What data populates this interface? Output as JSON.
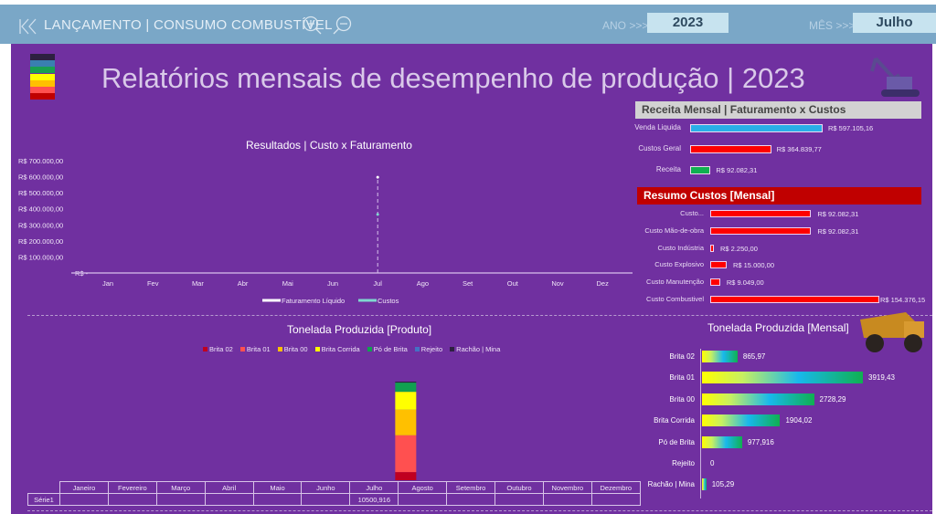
{
  "topbar": {
    "nav_label": "LANÇAMENTO | CONSUMO COMBUSTÍVEL",
    "year_label": "ANO >>>",
    "year_value": "2023",
    "month_label": "MÊS >>>",
    "month_value": "Julho"
  },
  "header": {
    "title": "Relatórios mensais de desempenho de produção | 2023",
    "swatches": [
      "#2d2040",
      "#3a7fb0",
      "#1aa050",
      "#ffff00",
      "#ffc000",
      "#ff5050",
      "#c00000"
    ]
  },
  "receita": {
    "title": "Receita Mensal | Faturamento x Custos",
    "rows": [
      {
        "label": "Venda Liquida",
        "value": 597105.16,
        "text": "R$ 597.105,16",
        "color": "#29aee8"
      },
      {
        "label": "Custos Geral",
        "value": 364839.77,
        "text": "R$ 364.839,77",
        "color": "#ff0000"
      },
      {
        "label": "Receita",
        "value": 92082.31,
        "text": "R$ 92.082,31",
        "color": "#10b050"
      }
    ]
  },
  "resumo": {
    "title": "Resumo Custos [Mensal]",
    "rows": [
      {
        "label": "Custo...",
        "value": 92082.31,
        "text": "R$ 92.082,31"
      },
      {
        "label": "Custo Mão-de-obra",
        "value": 92082.31,
        "text": "R$ 92.082,31"
      },
      {
        "label": "Custo Indústria",
        "value": 2250,
        "text": "R$ 2.250,00"
      },
      {
        "label": "Custo Explosivo",
        "value": 15000,
        "text": "R$ 15.000,00"
      },
      {
        "label": "Custo Manutenção",
        "value": 9049,
        "text": "R$ 9.049,00"
      },
      {
        "label": "Custo Combustivel",
        "value": 154376.15,
        "text": "R$ 154.376,15"
      }
    ]
  },
  "chart_data": [
    {
      "type": "line",
      "title": "Resultados | Custo x Faturamento",
      "categories": [
        "Jan",
        "Fev",
        "Mar",
        "Abr",
        "Mai",
        "Jun",
        "Jul",
        "Ago",
        "Set",
        "Out",
        "Nov",
        "Dez"
      ],
      "yticks": [
        "R$ 700.000,00",
        "R$ 600.000,00",
        "R$ 500.000,00",
        "R$ 400.000,00",
        "R$ 300.000,00",
        "R$ 200.000,00",
        "R$ 100.000,00",
        "R$ -"
      ],
      "ylim": [
        0,
        700000
      ],
      "series": [
        {
          "name": "Faturamento Líquido",
          "color": "#ffffff",
          "values": [
            null,
            null,
            null,
            null,
            null,
            null,
            597105.16,
            null,
            null,
            null,
            null,
            null
          ]
        },
        {
          "name": "Custos",
          "color": "#7fd8d0",
          "values": [
            null,
            null,
            null,
            null,
            null,
            null,
            364839.77,
            null,
            null,
            null,
            null,
            null
          ]
        }
      ],
      "legend": "bottom"
    },
    {
      "type": "bar",
      "stacked": true,
      "title": "Tonelada Produzida [Produto]",
      "categories": [
        "Janeiro",
        "Fevereiro",
        "Março",
        "Abril",
        "Maio",
        "Junho",
        "Julho",
        "Agosto",
        "Setembro",
        "Outubro",
        "Novembro",
        "Dezembro"
      ],
      "series": [
        {
          "name": "Brita 02",
          "color": "#c00020",
          "values": [
            0,
            0,
            0,
            0,
            0,
            0,
            865.97,
            0,
            0,
            0,
            0,
            0
          ]
        },
        {
          "name": "Brita 01",
          "color": "#ff5050",
          "values": [
            0,
            0,
            0,
            0,
            0,
            0,
            3919.43,
            0,
            0,
            0,
            0,
            0
          ]
        },
        {
          "name": "Brita 00",
          "color": "#ffc000",
          "values": [
            0,
            0,
            0,
            0,
            0,
            0,
            2728.29,
            0,
            0,
            0,
            0,
            0
          ]
        },
        {
          "name": "Brita Corrida",
          "color": "#ffff00",
          "values": [
            0,
            0,
            0,
            0,
            0,
            0,
            1904.02,
            0,
            0,
            0,
            0,
            0
          ]
        },
        {
          "name": "Pó de Brita",
          "color": "#10a050",
          "values": [
            0,
            0,
            0,
            0,
            0,
            0,
            977.916,
            0,
            0,
            0,
            0,
            0
          ]
        },
        {
          "name": "Rejeito",
          "color": "#4472c4",
          "values": [
            0,
            0,
            0,
            0,
            0,
            0,
            0,
            0,
            0,
            0,
            0,
            0
          ]
        },
        {
          "name": "Rachão | Mina",
          "color": "#2d2040",
          "values": [
            0,
            0,
            0,
            0,
            0,
            0,
            105.29,
            0,
            0,
            0,
            0,
            0
          ]
        }
      ],
      "table": {
        "row_label": "Série1",
        "values": [
          "",
          "",
          "",
          "",
          "",
          "",
          "10500,916",
          "",
          "",
          "",
          "",
          ""
        ]
      },
      "legend": "top"
    },
    {
      "type": "bar",
      "orientation": "horizontal",
      "title": "Tonelada Produzida [Mensal]",
      "categories": [
        "Brita 02",
        "Brita 01",
        "Brita 00",
        "Brita Corrida",
        "Pó de Brita",
        "Rejeito",
        "Rachão | Mina"
      ],
      "values": [
        865.97,
        3919.43,
        2728.29,
        1904.02,
        977.916,
        0,
        105.29
      ],
      "labels": [
        "865,97",
        "3919,43",
        "2728,29",
        "1904,02",
        "977,916",
        "0",
        "105,29"
      ]
    }
  ]
}
